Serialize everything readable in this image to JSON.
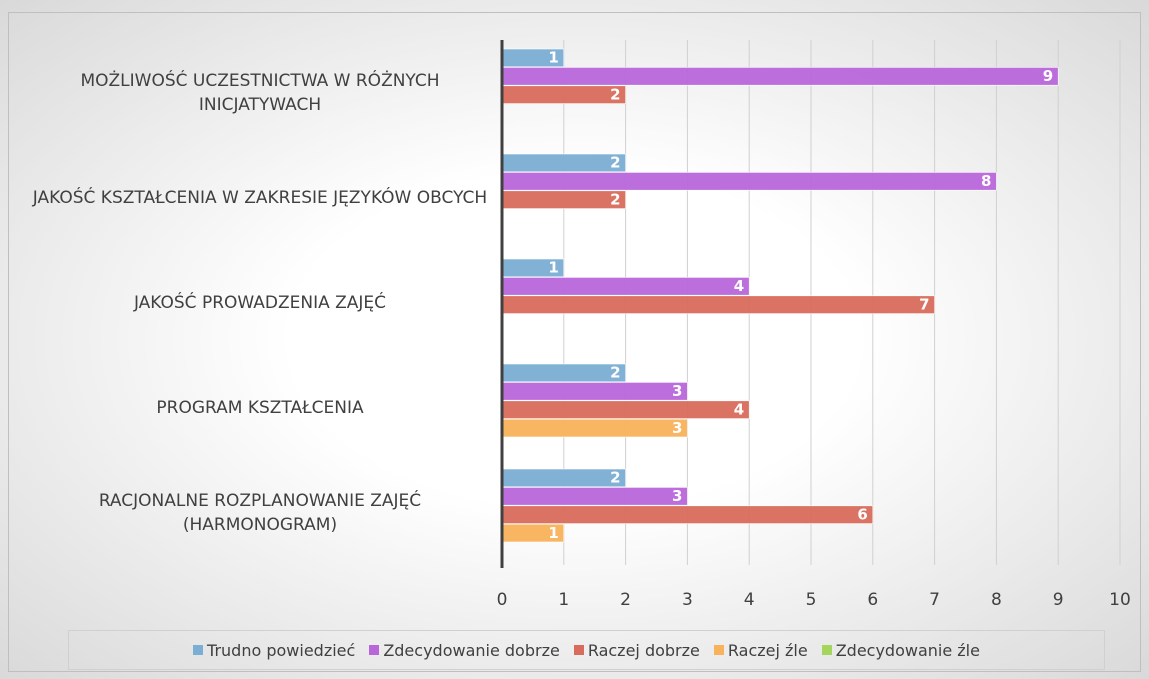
{
  "chart_data": {
    "type": "hbar",
    "categories": [
      "MOŻLIWOŚĆ UCZESTNICTWA W RÓŻNYCH INICJATYWACH",
      "JAKOŚĆ KSZTAŁCENIA W ZAKRESIE JĘZYKÓW OBCYCH",
      "JAKOŚĆ PROWADZENIA ZAJĘĆ",
      "PROGRAM KSZTAŁCENIA",
      "RACJONALNE ROZPLANOWANIE ZAJĘĆ (HARMONOGRAM)"
    ],
    "series": [
      {
        "name": "Trudno powiedzieć",
        "color": "#7aaed3",
        "values": [
          1,
          2,
          1,
          2,
          2
        ]
      },
      {
        "name": "Zdecydowanie dobrze",
        "color": "#b966db",
        "values": [
          9,
          8,
          4,
          3,
          3
        ]
      },
      {
        "name": "Raczej dobrze",
        "color": "#d86b5b",
        "values": [
          2,
          2,
          7,
          4,
          6
        ]
      },
      {
        "name": "Raczej źle",
        "color": "#f8b25b",
        "values": [
          null,
          null,
          null,
          3,
          1
        ]
      },
      {
        "name": "Zdecydowanie źle",
        "color": "#a4d65e",
        "values": [
          null,
          null,
          null,
          null,
          null
        ]
      }
    ],
    "xlim": [
      0,
      10
    ],
    "xticks": [
      0,
      1,
      2,
      3,
      4,
      5,
      6,
      7,
      8,
      9,
      10
    ],
    "grid": true,
    "legend": "bottom"
  }
}
